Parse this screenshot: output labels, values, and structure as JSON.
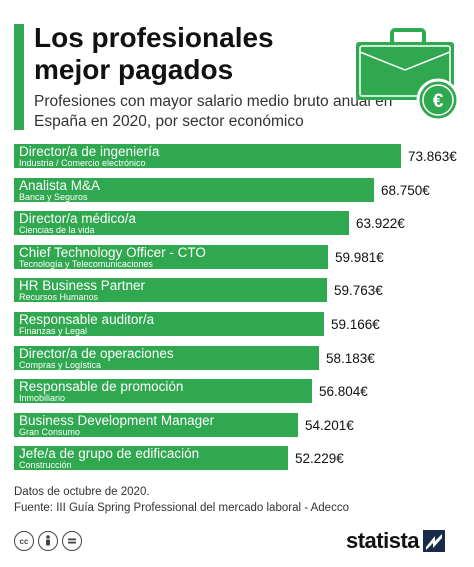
{
  "header": {
    "title": "Los profesionales mejor pagados",
    "subtitle": "Profesiones con mayor salario medio bruto anual en España en 2020, por sector económico"
  },
  "colors": {
    "bar": "#2fa84f",
    "accent": "#2fa84f"
  },
  "chart_data": {
    "type": "bar",
    "orientation": "horizontal",
    "title": "Los profesionales mejor pagados",
    "subtitle": "Profesiones con mayor salario medio bruto anual en España en 2020, por sector económico",
    "categories": [
      "Director/a de ingeniería",
      "Analista M&A",
      "Director/a médico/a",
      "Chief Technology Officer - CTO",
      "HR Business Partner",
      "Responsable auditor/a",
      "Director/a de operaciones",
      "Responsable de promoción",
      "Business Development Manager",
      "Jefe/a de grupo de edificación"
    ],
    "sectors": [
      "Industria / Comercio electrónico",
      "Banca y Seguros",
      "Ciencias de la vida",
      "Tecnología y Telecomunicaciones",
      "Recursos Humanos",
      "Finanzas y Legal",
      "Compras y Logística",
      "Inmobiliario",
      "Gran Consumo",
      "Construcción"
    ],
    "values": [
      73863,
      68750,
      63922,
      59981,
      59763,
      59166,
      58183,
      56804,
      54201,
      52229
    ],
    "value_labels": [
      "73.863€",
      "68.750€",
      "63.922€",
      "59.981€",
      "59.763€",
      "59.166€",
      "58.183€",
      "56.804€",
      "54.201€",
      "52.229€"
    ],
    "xlim": [
      0,
      80000
    ],
    "grid": false,
    "legend": "none"
  },
  "footer": {
    "date_note": "Datos de octubre de 2020.",
    "source": "Fuente: III Guía Spring Professional del mercado laboral - Adecco",
    "brand": "statista"
  },
  "icons": [
    "briefcase-euro-icon",
    "cc-icon",
    "by-icon",
    "nd-icon",
    "statista-logo-icon"
  ]
}
